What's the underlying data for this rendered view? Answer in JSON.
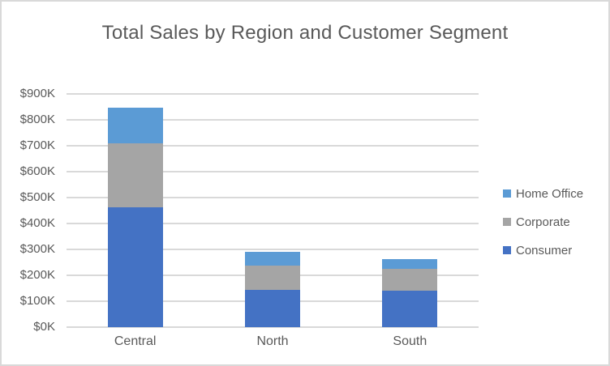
{
  "title": "Total Sales by Region and Customer Segment",
  "colors": {
    "consumer": "#4472C4",
    "corporate": "#A5A5A5",
    "home_office": "#5B9BD5",
    "gridline": "#D9D9D9",
    "frame_border": "#D9D9D9",
    "text": "#595959",
    "background": "#FFFFFF"
  },
  "legend": {
    "position": "right",
    "items": [
      {
        "label": "Home Office",
        "color": "#5B9BD5"
      },
      {
        "label": "Corporate",
        "color": "#A5A5A5"
      },
      {
        "label": "Consumer",
        "color": "#4472C4"
      }
    ]
  },
  "chart_data": {
    "type": "bar",
    "stacked": true,
    "title": "Total Sales by Region and Customer Segment",
    "xlabel": "",
    "ylabel": "",
    "categories": [
      "Central",
      "North",
      "South"
    ],
    "series": [
      {
        "name": "Consumer",
        "color": "#4472C4",
        "values": [
          462,
          144,
          141
        ]
      },
      {
        "name": "Corporate",
        "color": "#A5A5A5",
        "values": [
          248,
          95,
          84
        ]
      },
      {
        "name": "Home Office",
        "color": "#5B9BD5",
        "values": [
          138,
          51,
          37
        ]
      }
    ],
    "stack_totals": [
      848,
      290,
      262
    ],
    "values_unit": "thousand dollars (K)",
    "ylim": [
      0,
      900
    ],
    "ytick_interval": 100,
    "ytick_labels": [
      "$0K",
      "$100K",
      "$200K",
      "$300K",
      "$400K",
      "$500K",
      "$600K",
      "$700K",
      "$800K",
      "$900K"
    ],
    "grid": true,
    "legend_position": "right"
  }
}
